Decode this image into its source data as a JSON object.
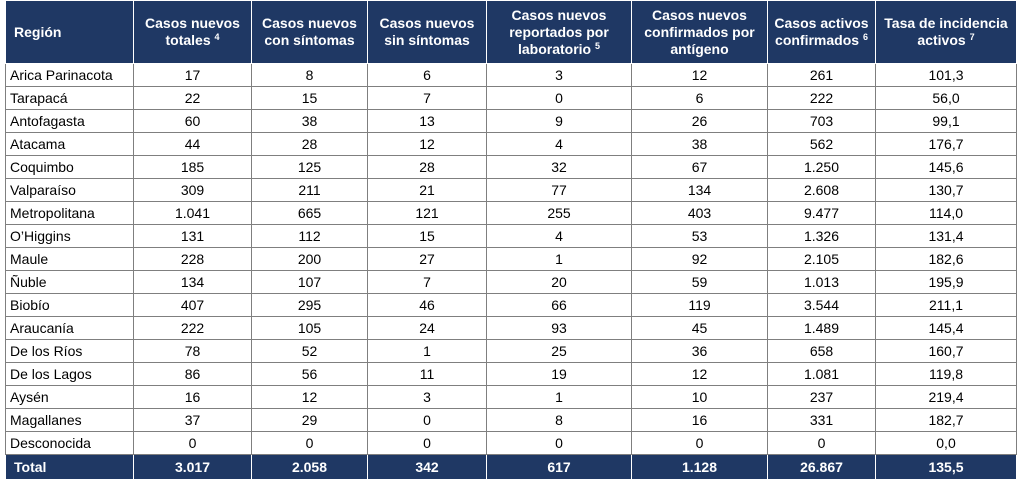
{
  "colors": {
    "header_bg": "#1f3864",
    "header_text": "#ffffff",
    "border": "#7f7f7f"
  },
  "headers": [
    {
      "text": "Región",
      "sup": ""
    },
    {
      "text": "Casos nuevos totales",
      "sup": "4"
    },
    {
      "text": "Casos nuevos con síntomas",
      "sup": ""
    },
    {
      "text": "Casos nuevos sin síntomas",
      "sup": ""
    },
    {
      "text": "Casos nuevos reportados por laboratorio",
      "sup": "5"
    },
    {
      "text": "Casos nuevos confirmados por antígeno",
      "sup": ""
    },
    {
      "text": "Casos activos confirmados",
      "sup": "6"
    },
    {
      "text": "Tasa de incidencia activos",
      "sup": "7"
    }
  ],
  "rows": [
    [
      "Arica Parinacota",
      "17",
      "8",
      "6",
      "3",
      "12",
      "261",
      "101,3"
    ],
    [
      "Tarapacá",
      "22",
      "15",
      "7",
      "0",
      "6",
      "222",
      "56,0"
    ],
    [
      "Antofagasta",
      "60",
      "38",
      "13",
      "9",
      "26",
      "703",
      "99,1"
    ],
    [
      "Atacama",
      "44",
      "28",
      "12",
      "4",
      "38",
      "562",
      "176,7"
    ],
    [
      "Coquimbo",
      "185",
      "125",
      "28",
      "32",
      "67",
      "1.250",
      "145,6"
    ],
    [
      "Valparaíso",
      "309",
      "211",
      "21",
      "77",
      "134",
      "2.608",
      "130,7"
    ],
    [
      "Metropolitana",
      "1.041",
      "665",
      "121",
      "255",
      "403",
      "9.477",
      "114,0"
    ],
    [
      "O’Higgins",
      "131",
      "112",
      "15",
      "4",
      "53",
      "1.326",
      "131,4"
    ],
    [
      "Maule",
      "228",
      "200",
      "27",
      "1",
      "92",
      "2.105",
      "182,6"
    ],
    [
      "Ñuble",
      "134",
      "107",
      "7",
      "20",
      "59",
      "1.013",
      "195,9"
    ],
    [
      "Biobío",
      "407",
      "295",
      "46",
      "66",
      "119",
      "3.544",
      "211,1"
    ],
    [
      "Araucanía",
      "222",
      "105",
      "24",
      "93",
      "45",
      "1.489",
      "145,4"
    ],
    [
      "De los Ríos",
      "78",
      "52",
      "1",
      "25",
      "36",
      "658",
      "160,7"
    ],
    [
      "De los Lagos",
      "86",
      "56",
      "11",
      "19",
      "12",
      "1.081",
      "119,8"
    ],
    [
      "Aysén",
      "16",
      "12",
      "3",
      "1",
      "10",
      "237",
      "219,4"
    ],
    [
      "Magallanes",
      "37",
      "29",
      "0",
      "8",
      "16",
      "331",
      "182,7"
    ],
    [
      "Desconocida",
      "0",
      "0",
      "0",
      "0",
      "0",
      "0",
      "0,0"
    ]
  ],
  "total": [
    "Total",
    "3.017",
    "2.058",
    "342",
    "617",
    "1.128",
    "26.867",
    "135,5"
  ]
}
